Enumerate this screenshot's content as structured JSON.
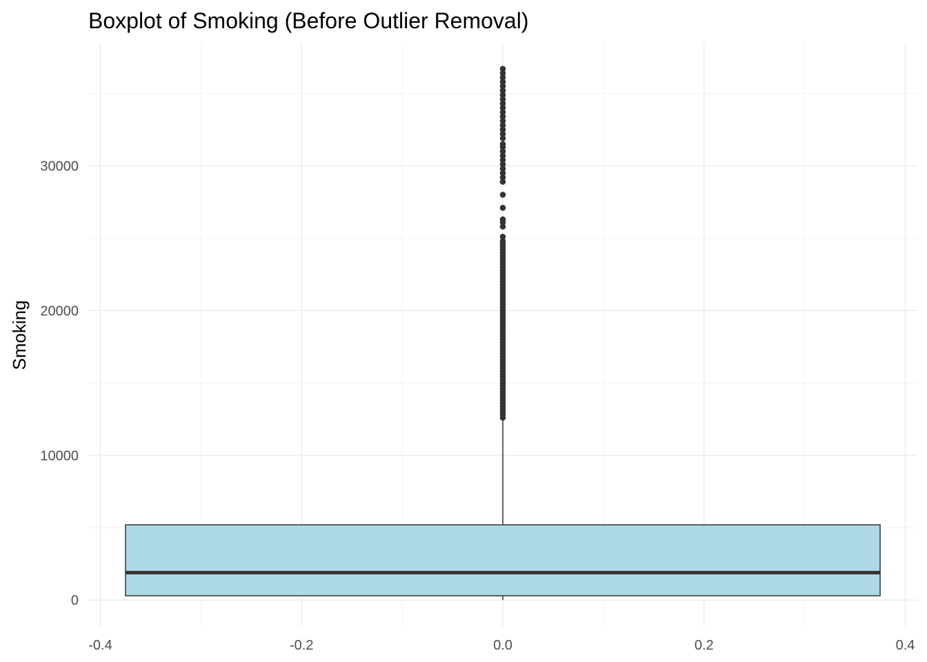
{
  "chart_data": {
    "type": "boxplot",
    "title": "Boxplot of Smoking (Before Outlier Removal)",
    "xlabel": "",
    "ylabel": "Smoking",
    "xlim": [
      -0.4,
      0.4
    ],
    "ylim": [
      0,
      37000
    ],
    "x_ticks": [
      -0.4,
      -0.2,
      0.0,
      0.2,
      0.4
    ],
    "x_tick_labels": [
      "-0.4",
      "-0.2",
      "0.0",
      "0.2",
      "0.4"
    ],
    "y_ticks": [
      0,
      10000,
      20000,
      30000
    ],
    "y_tick_labels": [
      "0",
      "10000",
      "20000",
      "30000"
    ],
    "grid": true,
    "legend": "none",
    "box": {
      "x": 0.0,
      "x_min": -0.375,
      "x_max": 0.375,
      "q1": 300,
      "median": 1900,
      "q3": 5200,
      "whisker_low": 0,
      "whisker_high": 12600,
      "fill_color": "#add8e6",
      "line_color": "#333333"
    },
    "outliers": {
      "x": 0.0,
      "color": "#333333",
      "values": [
        12600,
        12800,
        13000,
        13200,
        13400,
        13600,
        13800,
        14000,
        14200,
        14400,
        14600,
        14800,
        15000,
        15200,
        15400,
        15600,
        15800,
        16000,
        16200,
        16400,
        16600,
        16800,
        17000,
        17200,
        17400,
        17600,
        17800,
        18000,
        18200,
        18400,
        18600,
        18800,
        19000,
        19200,
        19400,
        19600,
        19800,
        20000,
        20200,
        20400,
        20600,
        20800,
        21000,
        21200,
        21400,
        21600,
        21800,
        22000,
        22200,
        22400,
        22600,
        22800,
        23000,
        23200,
        23400,
        23600,
        23800,
        24000,
        24200,
        24400,
        24600,
        24800,
        25100,
        25800,
        26100,
        26300,
        27100,
        28000,
        28900,
        29200,
        29500,
        29800,
        30100,
        30400,
        30700,
        31000,
        31300,
        31500,
        31900,
        32200,
        32500,
        32800,
        33100,
        33400,
        33700,
        34000,
        34300,
        34600,
        34900,
        35200,
        35500,
        35800,
        36100,
        36400,
        36700
      ]
    }
  }
}
